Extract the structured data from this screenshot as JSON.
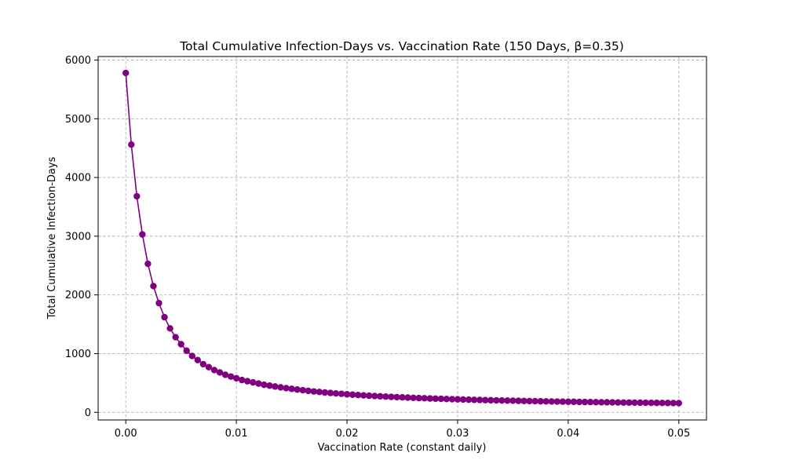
{
  "chart_data": {
    "type": "line",
    "title": "Total Cumulative Infection-Days vs. Vaccination Rate (150 Days, β=0.35)",
    "xlabel": "Vaccination Rate (constant daily)",
    "ylabel": "Total Cumulative Infection-Days",
    "xlim": [
      -0.0025,
      0.0525
    ],
    "ylim": [
      -130,
      6060
    ],
    "xticks": [
      0.0,
      0.01,
      0.02,
      0.03,
      0.04,
      0.05
    ],
    "xtick_labels": [
      "0.00",
      "0.01",
      "0.02",
      "0.03",
      "0.04",
      "0.05"
    ],
    "yticks": [
      0,
      1000,
      2000,
      3000,
      4000,
      5000,
      6000
    ],
    "ytick_labels": [
      "0",
      "1000",
      "2000",
      "3000",
      "4000",
      "5000",
      "6000"
    ],
    "grid": true,
    "color": "#800080",
    "series": [
      {
        "name": "",
        "x": [
          0.0,
          0.0005,
          0.001,
          0.0015,
          0.002,
          0.0025,
          0.003,
          0.0035,
          0.004,
          0.0045,
          0.005,
          0.0055,
          0.006,
          0.0065,
          0.007,
          0.0075,
          0.008,
          0.0085,
          0.009,
          0.0095,
          0.01,
          0.0105,
          0.011,
          0.0115,
          0.012,
          0.0125,
          0.013,
          0.0135,
          0.014,
          0.0145,
          0.015,
          0.0155,
          0.016,
          0.0165,
          0.017,
          0.0175,
          0.018,
          0.0185,
          0.019,
          0.0195,
          0.02,
          0.0205,
          0.021,
          0.0215,
          0.022,
          0.0225,
          0.023,
          0.0235,
          0.024,
          0.0245,
          0.025,
          0.0255,
          0.026,
          0.0265,
          0.027,
          0.0275,
          0.028,
          0.0285,
          0.029,
          0.0295,
          0.03,
          0.0305,
          0.031,
          0.0315,
          0.032,
          0.0325,
          0.033,
          0.0335,
          0.034,
          0.0345,
          0.035,
          0.0355,
          0.036,
          0.0365,
          0.037,
          0.0375,
          0.038,
          0.0385,
          0.039,
          0.0395,
          0.04,
          0.0405,
          0.041,
          0.0415,
          0.042,
          0.0425,
          0.043,
          0.0435,
          0.044,
          0.0445,
          0.045,
          0.0455,
          0.046,
          0.0465,
          0.047,
          0.0475,
          0.048,
          0.0485,
          0.049,
          0.0495,
          0.05
        ],
        "y": [
          5780,
          4560,
          3680,
          3030,
          2530,
          2150,
          1860,
          1620,
          1430,
          1280,
          1160,
          1050,
          960,
          890,
          820,
          770,
          720,
          680,
          640,
          610,
          580,
          550,
          530,
          510,
          490,
          470,
          455,
          440,
          425,
          412,
          400,
          388,
          377,
          366,
          356,
          347,
          338,
          330,
          322,
          315,
          308,
          301,
          295,
          289,
          283,
          278,
          273,
          268,
          263,
          259,
          255,
          251,
          247,
          243,
          240,
          236,
          233,
          230,
          227,
          224,
          221,
          218,
          216,
          213,
          211,
          208,
          206,
          204,
          202,
          200,
          198,
          196,
          194,
          192,
          190,
          188,
          187,
          185,
          183,
          182,
          180,
          179,
          177,
          176,
          175,
          173,
          172,
          171,
          170,
          168,
          167,
          166,
          165,
          164,
          163,
          162,
          161,
          160,
          159,
          158,
          157
        ]
      }
    ]
  }
}
